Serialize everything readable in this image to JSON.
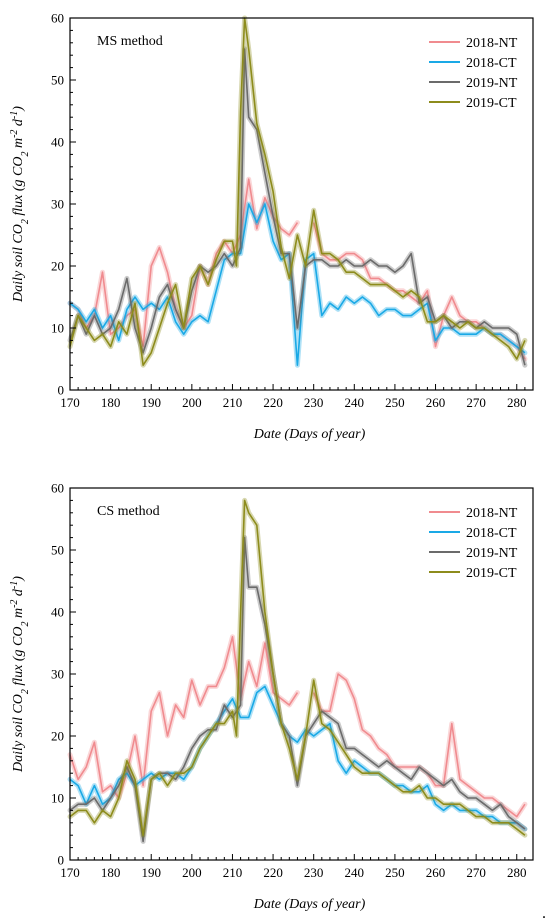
{
  "colors": {
    "2018-NT": "#f08b8f",
    "2018-CT": "#1aa9e6",
    "2019-NT": "#6b6b6b",
    "2019-CT": "#8d8c1c"
  },
  "chart_data": [
    {
      "type": "line",
      "title": "",
      "annotation": "MS method",
      "xlabel": "Date (Days of year)",
      "ylabel": [
        "Daily soil CO",
        "2",
        " flux (g CO",
        "2",
        " m",
        "-2",
        " d",
        "-1",
        ")"
      ],
      "xlim": [
        170,
        284
      ],
      "ylim": [
        0,
        60
      ],
      "xticks": [
        170,
        180,
        190,
        200,
        210,
        220,
        230,
        240,
        250,
        260,
        270,
        280
      ],
      "yticks": [
        0,
        10,
        20,
        30,
        40,
        50,
        60
      ],
      "legend": "top-right",
      "series": [
        {
          "name": "2018-NT",
          "x": [
            170,
            172,
            174,
            176,
            178,
            180,
            182,
            184,
            186,
            188,
            190,
            192,
            194,
            196,
            198,
            200,
            202,
            204,
            206,
            208,
            210,
            212,
            214,
            216,
            218,
            220,
            222,
            224,
            226,
            228,
            230,
            232,
            234,
            236,
            238,
            240,
            242,
            244,
            246,
            248,
            250,
            252,
            254,
            256,
            258,
            260,
            262,
            264,
            266,
            268,
            270,
            272,
            274,
            276,
            278,
            280,
            282
          ],
          "y": [
            14,
            13,
            10,
            12,
            19,
            9,
            10,
            12,
            13,
            7,
            20,
            23,
            19,
            13,
            10,
            12,
            20,
            17,
            22,
            24,
            22,
            25,
            34,
            26,
            31,
            28,
            26,
            25,
            27,
            null,
            27,
            22,
            21,
            21,
            22,
            22,
            21,
            18,
            18,
            17,
            16,
            16,
            15,
            14,
            16,
            7,
            12,
            15,
            12,
            11,
            11,
            10,
            9,
            9,
            8,
            7,
            5
          ]
        },
        {
          "name": "2018-CT",
          "x": [
            170,
            172,
            174,
            176,
            178,
            180,
            182,
            184,
            186,
            188,
            190,
            192,
            194,
            196,
            198,
            200,
            202,
            204,
            206,
            208,
            210,
            212,
            214,
            216,
            218,
            220,
            222,
            224,
            226,
            228,
            230,
            232,
            234,
            236,
            238,
            240,
            242,
            244,
            246,
            248,
            250,
            252,
            254,
            256,
            258,
            260,
            262,
            264,
            266,
            268,
            270,
            272,
            274,
            276,
            278,
            280,
            282
          ],
          "y": [
            14,
            13,
            11,
            13,
            10,
            12,
            8,
            13,
            15,
            13,
            14,
            13,
            15,
            11,
            9,
            11,
            12,
            11,
            16,
            21,
            22,
            22,
            30,
            27,
            30,
            24,
            21,
            22,
            4,
            21,
            22,
            12,
            14,
            13,
            15,
            14,
            15,
            14,
            12,
            13,
            13,
            12,
            12,
            13,
            14,
            8,
            10,
            10,
            9,
            9,
            9,
            10,
            9,
            9,
            8,
            7,
            6
          ]
        },
        {
          "name": "2019-NT",
          "x": [
            170,
            172,
            174,
            176,
            178,
            180,
            182,
            184,
            186,
            188,
            190,
            192,
            194,
            196,
            198,
            200,
            202,
            204,
            206,
            208,
            210,
            212,
            213,
            214,
            216,
            218,
            220,
            222,
            224,
            226,
            228,
            230,
            232,
            234,
            236,
            238,
            240,
            242,
            244,
            246,
            248,
            250,
            252,
            254,
            256,
            258,
            260,
            262,
            264,
            266,
            268,
            270,
            272,
            274,
            276,
            278,
            280,
            282
          ],
          "y": [
            8,
            12,
            9,
            12,
            9,
            10,
            13,
            18,
            10,
            6,
            10,
            15,
            17,
            13,
            10,
            16,
            20,
            19,
            20,
            22,
            20,
            23,
            55,
            44,
            42,
            35,
            28,
            22,
            22,
            10,
            20,
            21,
            21,
            20,
            20,
            21,
            20,
            20,
            21,
            20,
            20,
            19,
            20,
            22,
            14,
            15,
            11,
            12,
            10,
            11,
            11,
            10,
            11,
            10,
            10,
            10,
            9,
            4
          ]
        },
        {
          "name": "2019-CT",
          "x": [
            170,
            172,
            174,
            176,
            178,
            180,
            182,
            184,
            186,
            188,
            190,
            192,
            194,
            196,
            198,
            200,
            202,
            204,
            206,
            208,
            210,
            211,
            212,
            213,
            214,
            216,
            218,
            220,
            222,
            224,
            226,
            228,
            230,
            232,
            234,
            236,
            238,
            240,
            242,
            244,
            246,
            248,
            250,
            252,
            254,
            256,
            258,
            260,
            262,
            264,
            266,
            268,
            270,
            272,
            274,
            276,
            278,
            280,
            282
          ],
          "y": [
            7,
            12,
            10,
            8,
            9,
            7,
            11,
            9,
            14,
            4,
            6,
            10,
            14,
            17,
            10,
            18,
            20,
            17,
            21,
            24,
            24,
            20,
            45,
            60,
            55,
            43,
            38,
            32,
            23,
            18,
            25,
            20,
            29,
            22,
            22,
            21,
            19,
            19,
            18,
            17,
            17,
            17,
            16,
            15,
            16,
            15,
            11,
            11,
            12,
            11,
            10,
            11,
            10,
            10,
            9,
            8,
            7,
            5,
            8
          ]
        }
      ]
    },
    {
      "type": "line",
      "title": "",
      "annotation": "CS method",
      "xlabel": "Date (Days of year)",
      "ylabel": [
        "Daily soil CO",
        "2",
        " flux (g CO",
        "2",
        " m",
        "-2",
        " d",
        "-1",
        ")"
      ],
      "xlim": [
        170,
        284
      ],
      "ylim": [
        0,
        60
      ],
      "xticks": [
        170,
        180,
        190,
        200,
        210,
        220,
        230,
        240,
        250,
        260,
        270,
        280
      ],
      "yticks": [
        0,
        10,
        20,
        30,
        40,
        50,
        60
      ],
      "legend": "top-right",
      "series": [
        {
          "name": "2018-NT",
          "x": [
            170,
            172,
            174,
            176,
            178,
            180,
            182,
            184,
            186,
            188,
            190,
            192,
            194,
            196,
            198,
            200,
            202,
            204,
            206,
            208,
            210,
            212,
            214,
            216,
            218,
            220,
            222,
            224,
            226,
            228,
            230,
            232,
            234,
            236,
            238,
            240,
            242,
            244,
            246,
            248,
            250,
            252,
            254,
            256,
            258,
            260,
            262,
            264,
            266,
            268,
            270,
            272,
            274,
            276,
            278,
            280,
            282
          ],
          "y": [
            17,
            13,
            15,
            19,
            11,
            12,
            10,
            14,
            20,
            12,
            24,
            27,
            20,
            25,
            23,
            29,
            25,
            28,
            28,
            31,
            36,
            26,
            32,
            28,
            35,
            27,
            26,
            25,
            27,
            null,
            27,
            24,
            24,
            30,
            29,
            26,
            21,
            20,
            18,
            17,
            15,
            15,
            15,
            15,
            14,
            12,
            12,
            22,
            13,
            12,
            11,
            10,
            10,
            9,
            8,
            7,
            9
          ]
        },
        {
          "name": "2018-CT",
          "x": [
            170,
            172,
            174,
            176,
            178,
            180,
            182,
            184,
            186,
            188,
            190,
            192,
            194,
            196,
            198,
            200,
            202,
            204,
            206,
            208,
            210,
            212,
            214,
            216,
            218,
            220,
            222,
            224,
            226,
            228,
            230,
            232,
            234,
            236,
            238,
            240,
            242,
            244,
            246,
            248,
            250,
            252,
            254,
            256,
            258,
            260,
            262,
            264,
            266,
            268,
            270,
            272,
            274,
            276,
            278,
            280,
            282
          ],
          "y": [
            13,
            12,
            9,
            12,
            9,
            10,
            13,
            14,
            12,
            13,
            14,
            13,
            14,
            14,
            13,
            15,
            18,
            20,
            22,
            24,
            26,
            23,
            23,
            27,
            28,
            25,
            22,
            20,
            19,
            21,
            20,
            21,
            22,
            16,
            14,
            16,
            15,
            14,
            14,
            13,
            12,
            12,
            11,
            11,
            12,
            9,
            8,
            9,
            8,
            8,
            8,
            7,
            7,
            6,
            6,
            6,
            5
          ]
        },
        {
          "name": "2019-NT",
          "x": [
            170,
            172,
            174,
            176,
            178,
            180,
            182,
            184,
            186,
            188,
            190,
            192,
            194,
            196,
            198,
            200,
            202,
            204,
            206,
            208,
            210,
            212,
            213,
            214,
            216,
            218,
            220,
            222,
            224,
            226,
            228,
            230,
            232,
            234,
            236,
            238,
            240,
            242,
            244,
            246,
            248,
            250,
            252,
            254,
            256,
            258,
            260,
            262,
            264,
            266,
            268,
            270,
            272,
            274,
            276,
            278,
            280,
            282
          ],
          "y": [
            8,
            9,
            9,
            10,
            8,
            10,
            12,
            15,
            12,
            3,
            13,
            14,
            14,
            13,
            15,
            18,
            20,
            21,
            21,
            25,
            23,
            25,
            52,
            44,
            44,
            38,
            30,
            22,
            20,
            12,
            20,
            22,
            24,
            23,
            22,
            18,
            18,
            17,
            16,
            15,
            16,
            15,
            14,
            13,
            15,
            14,
            13,
            12,
            13,
            11,
            10,
            10,
            9,
            8,
            9,
            7,
            6,
            5
          ]
        },
        {
          "name": "2019-CT",
          "x": [
            170,
            172,
            174,
            176,
            178,
            180,
            182,
            184,
            186,
            188,
            190,
            192,
            194,
            196,
            198,
            200,
            202,
            204,
            206,
            208,
            210,
            211,
            212,
            213,
            214,
            216,
            218,
            220,
            222,
            224,
            226,
            228,
            230,
            232,
            234,
            236,
            238,
            240,
            242,
            244,
            246,
            248,
            250,
            252,
            254,
            256,
            258,
            260,
            262,
            264,
            266,
            268,
            270,
            272,
            274,
            276,
            278,
            280,
            282
          ],
          "y": [
            7,
            8,
            8,
            6,
            8,
            7,
            10,
            16,
            13,
            4,
            13,
            14,
            12,
            14,
            14,
            15,
            18,
            20,
            22,
            22,
            24,
            20,
            40,
            58,
            56,
            54,
            40,
            30,
            22,
            18,
            13,
            20,
            29,
            22,
            21,
            19,
            17,
            15,
            14,
            14,
            14,
            13,
            12,
            11,
            11,
            12,
            10,
            10,
            9,
            9,
            9,
            8,
            7,
            7,
            6,
            6,
            6,
            5,
            4
          ]
        }
      ]
    }
  ]
}
